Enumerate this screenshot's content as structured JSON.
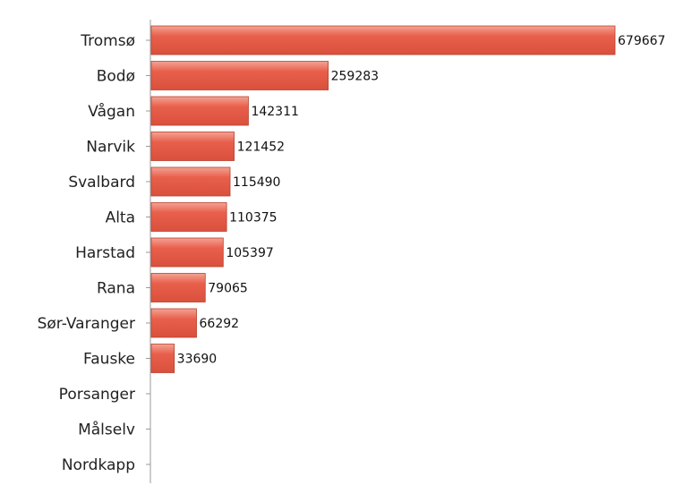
{
  "chart_data": {
    "type": "bar",
    "orientation": "horizontal",
    "categories": [
      "Tromsø",
      "Bodø",
      "Vågan",
      "Narvik",
      "Svalbard",
      "Alta",
      "Harstad",
      "Rana",
      "Sør-Varanger",
      "Fauske",
      "Porsanger",
      "Målselv",
      "Nordkapp"
    ],
    "values": [
      679667,
      259283,
      142311,
      121452,
      115490,
      110375,
      105397,
      79065,
      66292,
      33690,
      null,
      null,
      null
    ],
    "value_labels": [
      "679667",
      "259283",
      "142311",
      "121452",
      "115490",
      "110375",
      "105397",
      "79065",
      "66292",
      "33690",
      "",
      "",
      ""
    ],
    "title": "",
    "xlabel": "",
    "ylabel": "",
    "xlim": [
      0,
      679667
    ],
    "grid": false,
    "bar_color": "#e8604c",
    "bar_highlight_color": "#f4a394",
    "bar_edge_color": "#b8412f",
    "axis_color": "#9a9a9a"
  }
}
